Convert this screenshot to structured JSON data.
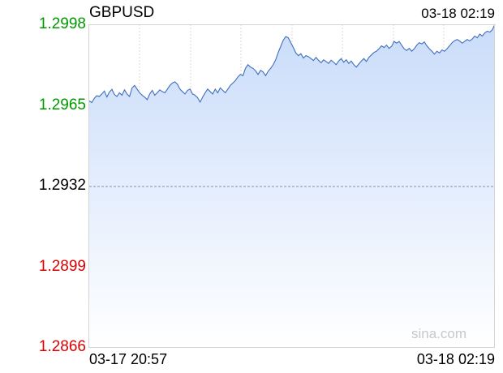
{
  "header": {
    "symbol": "GBPUSD",
    "timestamp": "03-18 02:19"
  },
  "watermark": "sina.com",
  "colors": {
    "up": "#009900",
    "down": "#dd0000",
    "base": "#000000",
    "line": "#3f6fbf",
    "fill_top": "#c9dcfa"
  },
  "chart_data": {
    "type": "area",
    "title": "GBPUSD",
    "xlabel": "",
    "ylabel": "",
    "reference_price": 1.2932,
    "ylim": [
      1.2866,
      1.2998
    ],
    "y_ticks": [
      {
        "label": "1.2998",
        "value": 1.2998,
        "color": "#009900"
      },
      {
        "label": "1.2965",
        "value": 1.2965,
        "color": "#009900"
      },
      {
        "label": "1.2932",
        "value": 1.2932,
        "color": "#000000"
      },
      {
        "label": "1.2899",
        "value": 1.2899,
        "color": "#dd0000"
      },
      {
        "label": "1.2866",
        "value": 1.2866,
        "color": "#dd0000"
      }
    ],
    "x_ticks": [
      "03-17 20:57",
      "03-18 02:19"
    ],
    "x_range": [
      "03-17 20:57",
      "03-18 02:19"
    ],
    "series": [
      {
        "values": [
          1.29667,
          1.2966,
          1.29677,
          1.29688,
          1.29685,
          1.29695,
          1.29707,
          1.29683,
          1.29703,
          1.29714,
          1.29693,
          1.29685,
          1.297,
          1.2969,
          1.29712,
          1.29695,
          1.29685,
          1.2972,
          1.2973,
          1.29715,
          1.297,
          1.2969,
          1.29682,
          1.29672,
          1.29695,
          1.2971,
          1.2969,
          1.297,
          1.29712,
          1.29705,
          1.297,
          1.29715,
          1.2973,
          1.2974,
          1.29745,
          1.29735,
          1.29715,
          1.29705,
          1.29695,
          1.2971,
          1.29715,
          1.29695,
          1.2969,
          1.2968,
          1.29662,
          1.29682,
          1.297,
          1.29715,
          1.29705,
          1.29695,
          1.29715,
          1.297,
          1.2972,
          1.2971,
          1.297,
          1.29715,
          1.2973,
          1.2974,
          1.2975,
          1.29765,
          1.29775,
          1.2977,
          1.298,
          1.29815,
          1.29805,
          1.298,
          1.2979,
          1.29775,
          1.29792,
          1.29785,
          1.2977,
          1.29788,
          1.298,
          1.29815,
          1.29835,
          1.29865,
          1.2989,
          1.29915,
          1.2993,
          1.29925,
          1.29905,
          1.29885,
          1.29863,
          1.29852,
          1.2986,
          1.29842,
          1.29852,
          1.29848,
          1.2984,
          1.29832,
          1.29845,
          1.29833,
          1.29823,
          1.29835,
          1.29828,
          1.2982,
          1.29833,
          1.29825,
          1.29815,
          1.2983,
          1.2984,
          1.29825,
          1.29835,
          1.2982,
          1.2983,
          1.29815,
          1.29805,
          1.29818,
          1.2983,
          1.2984,
          1.29828,
          1.29845,
          1.29855,
          1.29865,
          1.2987,
          1.2988,
          1.29892,
          1.29885,
          1.29895,
          1.29882,
          1.2989,
          1.2991,
          1.29903,
          1.2991,
          1.29895,
          1.2988,
          1.29873,
          1.29882,
          1.2987,
          1.2988,
          1.29895,
          1.29905,
          1.299,
          1.29908,
          1.29892,
          1.2988,
          1.2987,
          1.29858,
          1.2987,
          1.29863,
          1.29875,
          1.2987,
          1.2988,
          1.29892,
          1.29905,
          1.29913,
          1.29918,
          1.29912,
          1.29903,
          1.2991,
          1.29918,
          1.29912,
          1.2992,
          1.29932,
          1.29925,
          1.2994,
          1.29932,
          1.29945,
          1.29952,
          1.29948,
          1.29958,
          1.2998
        ]
      }
    ],
    "grid": true
  }
}
